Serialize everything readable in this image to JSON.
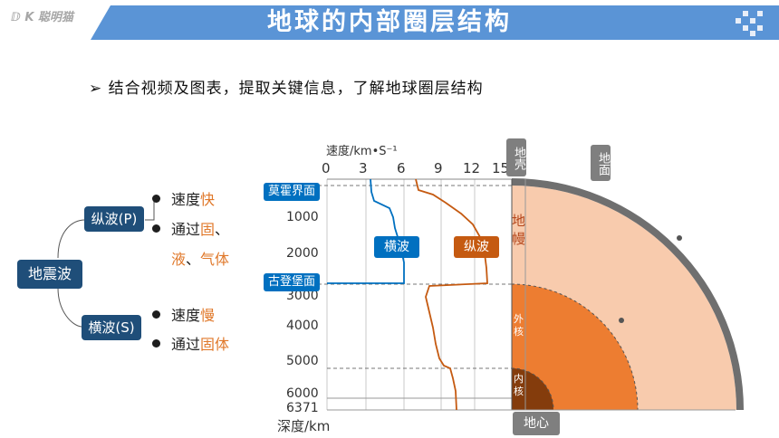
{
  "header": {
    "title": "地球的内部圈层结构",
    "logo": "ⅅ K 聪明猫"
  },
  "intro": "➢ 结合视频及图表，提取关键信息，了解地球圈层结构",
  "mindmap": {
    "root": "地震波",
    "p_wave": {
      "label": "纵波(P)",
      "speed_prefix": "速度",
      "speed_value": "快",
      "pass_prefix": "通过",
      "pass_1": "固",
      "sep1": "、",
      "pass_2": "液",
      "sep2": "、",
      "pass_3": "气体"
    },
    "s_wave": {
      "label": "横波(S)",
      "speed_prefix": "速度",
      "speed_value": "慢",
      "pass_prefix": "通过",
      "pass_1": "固体"
    }
  },
  "chart": {
    "speed_axis_label": "速度/km•S⁻¹",
    "speed_ticks": [
      "0",
      "3",
      "6",
      "9",
      "12",
      "15"
    ],
    "depth_ticks": [
      "1000",
      "2000",
      "3000",
      "4000",
      "5000",
      "6000",
      "6371"
    ],
    "depth_axis_label": "深度/km",
    "moho": "莫霍界面",
    "gutenberg": "古登堡面",
    "s_label": "横波",
    "p_label": "纵波"
  },
  "layers": {
    "crust": "地壳",
    "mantle": "地幔",
    "outer_core": "外核",
    "inner_core": "内核",
    "center": "地心",
    "surface": "地面"
  },
  "colors": {
    "banner": "#5a94d6",
    "box": "#1f4e79",
    "s_wave": "#0070c0",
    "p_wave": "#c55a11",
    "mantle": "#f8cbad",
    "outer_core": "#ed7d31",
    "inner_core": "#843c0c",
    "crust": "#7f7f7f",
    "accent": "#e0782a"
  }
}
